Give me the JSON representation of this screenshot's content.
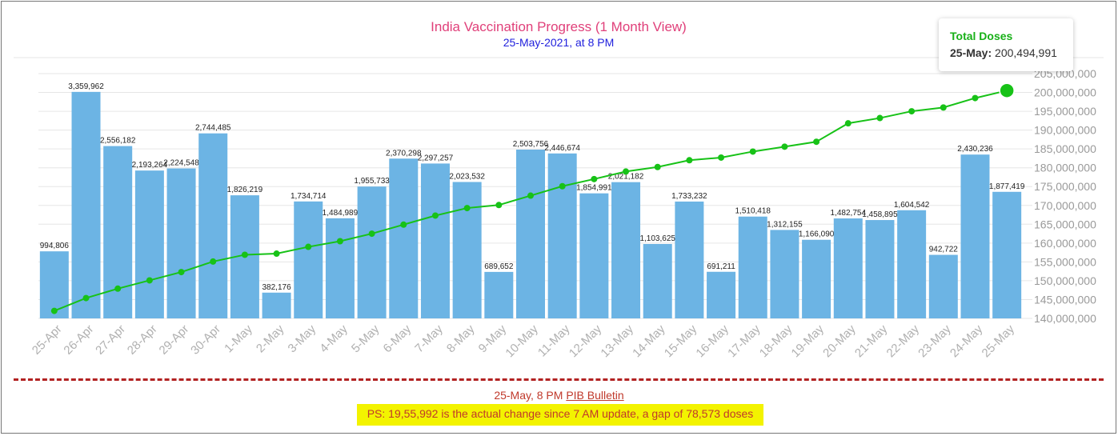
{
  "chart_data": {
    "type": "bar+line",
    "title": "India Vaccination Progress (1 Month View)",
    "subtitle": "25-May-2021, at 8 PM",
    "categories": [
      "25-Apr",
      "26-Apr",
      "27-Apr",
      "28-Apr",
      "29-Apr",
      "30-Apr",
      "1-May",
      "2-May",
      "3-May",
      "4-May",
      "5-May",
      "6-May",
      "7-May",
      "8-May",
      "9-May",
      "10-May",
      "11-May",
      "12-May",
      "13-May",
      "14-May",
      "15-May",
      "16-May",
      "17-May",
      "18-May",
      "19-May",
      "20-May",
      "21-May",
      "22-May",
      "23-May",
      "24-May",
      "25-May"
    ],
    "bar_labels": [
      "994,806",
      "3,359,962",
      "2,556,182",
      "2,193,264",
      "2,224,548",
      "2,744,485",
      "1,826,219",
      "382,176",
      "1,734,714",
      "1,484,989",
      "1,955,733",
      "2,370,298",
      "2,297,257",
      "2,023,532",
      "689,652",
      "2,503,756",
      "2,446,674",
      "1,854,991",
      "2,021,182",
      "1,103,625",
      "1,733,232",
      "691,211",
      "1,510,418",
      "1,312,155",
      "1,166,090",
      "1,482,754",
      "1,458,895",
      "1,604,542",
      "942,722",
      "2,430,236",
      "1,877,419"
    ],
    "series": [
      {
        "type": "bar",
        "color": "#6cb4e4",
        "values": [
          994806,
          3359962,
          2556182,
          2193264,
          2224548,
          2744485,
          1826219,
          382176,
          1734714,
          1484989,
          1955733,
          2370298,
          2297257,
          2023532,
          689652,
          2503756,
          2446674,
          1854991,
          2021182,
          1103625,
          1733232,
          691211,
          1510418,
          1312155,
          1166090,
          1482754,
          1458895,
          1604542,
          942722,
          2430236,
          1877419
        ]
      },
      {
        "type": "line",
        "name": "Total Doses",
        "color": "#17c217",
        "values": [
          142000000,
          145400000,
          147900000,
          150100000,
          152300000,
          155100000,
          156900000,
          157200000,
          159000000,
          160500000,
          162500000,
          164900000,
          167300000,
          169300000,
          170100000,
          172600000,
          175100000,
          177000000,
          179000000,
          180200000,
          182000000,
          182700000,
          184300000,
          185600000,
          186900000,
          191800000,
          193200000,
          195000000,
          196000000,
          198500000,
          200494991
        ]
      }
    ],
    "y_right_ticks": [
      "205,000,000",
      "200,000,000",
      "195,000,000",
      "190,000,000",
      "185,000,000",
      "180,000,000",
      "175,000,000",
      "170,000,000",
      "165,000,000",
      "160,000,000",
      "155,000,000",
      "150,000,000",
      "145,000,000",
      "140,000,000"
    ],
    "y_right_range": [
      140000000,
      205000000
    ],
    "y_left_range": [
      0,
      3559962
    ],
    "grid": true
  },
  "tooltip": {
    "title": "Total Doses",
    "date": "25-May:",
    "value": "200,494,991"
  },
  "footer": {
    "line1_prefix": "25-May, 8 PM ",
    "link_text": "PIB Bulletin",
    "note": "PS: 19,55,992 is the actual change since 7 AM update, a gap of 78,573 doses"
  },
  "colors": {
    "title": "#e0407a",
    "subtitle": "#2222dd",
    "bar": "#6cb4e4",
    "line": "#17c217",
    "footer_text": "#c0392b",
    "highlight": "#f3f300"
  }
}
